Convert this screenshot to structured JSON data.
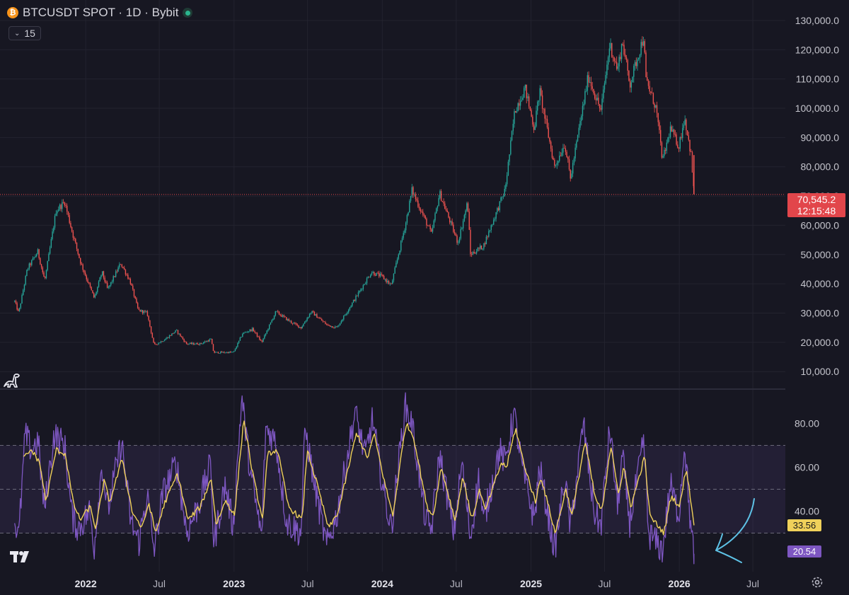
{
  "header": {
    "title": "BTCUSDT SPOT · 1D · Bybit",
    "interval_value": "15"
  },
  "price_tag": {
    "price": "70,545.2",
    "countdown": "12:15:48",
    "color": "#e2464b"
  },
  "rsi_tags": {
    "ma_value": "33.56",
    "rsi_value": "20.54",
    "ma_color": "#f0d15a",
    "rsi_color": "#7e57c2"
  },
  "icons": [
    "bitcoin-icon",
    "status-dot-icon",
    "chevron-down-icon",
    "dinosaur-icon",
    "tradingview-logo-icon",
    "gear-icon",
    "hand-drawn-arrow-icon"
  ],
  "chart_data": [
    {
      "type": "candlestick",
      "pane": "price",
      "y_ticks": [
        "130,000.0",
        "120,000.0",
        "110,000.0",
        "100,000.0",
        "90,000.0",
        "80,000.0",
        "70,000.0",
        "60,000.0",
        "50,000.0",
        "40,000.0",
        "30,000.0",
        "20,000.0",
        "10,000.0"
      ],
      "y_tick_values": [
        130000,
        120000,
        110000,
        100000,
        90000,
        80000,
        70000,
        60000,
        50000,
        40000,
        30000,
        20000,
        10000
      ],
      "ylim": [
        4000,
        137000
      ],
      "x_ticks": [
        "2022",
        "Jul",
        "2023",
        "Jul",
        "2024",
        "Jul",
        "2025",
        "Jul",
        "2026",
        "Jul"
      ],
      "x_tick_dates": [
        "2022-01-01",
        "2022-07-01",
        "2023-01-01",
        "2023-07-01",
        "2024-01-01",
        "2024-07-01",
        "2025-01-01",
        "2025-07-01",
        "2026-01-01",
        "2026-07-01"
      ],
      "xlim": [
        "2021-06-04",
        "2026-09-19"
      ],
      "current_price": 70545.2,
      "up_color": "#26a69a",
      "down_color": "#ef5350",
      "close_path": [
        [
          "2021-07-10",
          34000
        ],
        [
          "2021-07-20",
          30000
        ],
        [
          "2021-08-10",
          45000
        ],
        [
          "2021-09-05",
          51000
        ],
        [
          "2021-09-22",
          41000
        ],
        [
          "2021-10-20",
          65000
        ],
        [
          "2021-11-10",
          68000
        ],
        [
          "2021-11-30",
          57000
        ],
        [
          "2021-12-20",
          47000
        ],
        [
          "2022-01-22",
          35000
        ],
        [
          "2022-02-10",
          44000
        ],
        [
          "2022-02-24",
          38000
        ],
        [
          "2022-03-28",
          47000
        ],
        [
          "2022-04-20",
          41000
        ],
        [
          "2022-05-10",
          31000
        ],
        [
          "2022-06-01",
          30000
        ],
        [
          "2022-06-18",
          19000
        ],
        [
          "2022-07-15",
          21000
        ],
        [
          "2022-08-12",
          24000
        ],
        [
          "2022-09-06",
          19500
        ],
        [
          "2022-10-10",
          19500
        ],
        [
          "2022-11-05",
          21000
        ],
        [
          "2022-11-12",
          16500
        ],
        [
          "2022-12-31",
          16600
        ],
        [
          "2023-01-22",
          23000
        ],
        [
          "2023-02-16",
          24500
        ],
        [
          "2023-03-10",
          20000
        ],
        [
          "2023-04-14",
          30500
        ],
        [
          "2023-05-20",
          27000
        ],
        [
          "2023-06-15",
          25000
        ],
        [
          "2023-07-10",
          30500
        ],
        [
          "2023-08-17",
          26000
        ],
        [
          "2023-09-11",
          25000
        ],
        [
          "2023-10-24",
          34500
        ],
        [
          "2023-12-05",
          44000
        ],
        [
          "2023-12-31",
          42500
        ],
        [
          "2024-01-23",
          39500
        ],
        [
          "2024-02-28",
          61000
        ],
        [
          "2024-03-14",
          72000
        ],
        [
          "2024-05-01",
          57000
        ],
        [
          "2024-05-21",
          71000
        ],
        [
          "2024-07-05",
          54000
        ],
        [
          "2024-07-29",
          68000
        ],
        [
          "2024-08-05",
          50000
        ],
        [
          "2024-09-06",
          53000
        ],
        [
          "2024-10-29",
          72000
        ],
        [
          "2024-11-22",
          99000
        ],
        [
          "2024-12-17",
          107000
        ],
        [
          "2025-01-09",
          93000
        ],
        [
          "2025-01-22",
          106000
        ],
        [
          "2025-02-28",
          80000
        ],
        [
          "2025-03-25",
          88000
        ],
        [
          "2025-04-08",
          76000
        ],
        [
          "2025-05-22",
          111000
        ],
        [
          "2025-06-22",
          99000
        ],
        [
          "2025-07-14",
          122000
        ],
        [
          "2025-08-02",
          113000
        ],
        [
          "2025-08-14",
          123000
        ],
        [
          "2025-09-01",
          108000
        ],
        [
          "2025-10-06",
          125000
        ],
        [
          "2025-10-10",
          110000
        ],
        [
          "2025-11-05",
          100000
        ],
        [
          "2025-11-21",
          82000
        ],
        [
          "2025-12-10",
          93000
        ],
        [
          "2025-12-31",
          87000
        ],
        [
          "2026-01-14",
          97000
        ],
        [
          "2026-01-30",
          84000
        ],
        [
          "2026-02-06",
          70545
        ]
      ]
    },
    {
      "type": "line",
      "pane": "rsi",
      "y_ticks": [
        "80.00",
        "60.00",
        "40.00"
      ],
      "y_tick_values": [
        80,
        60,
        40
      ],
      "ylim": [
        15,
        95
      ],
      "band": [
        30,
        70
      ],
      "midline": 50,
      "band_color": "#7e57c2",
      "latest": {
        "rsi": 20.54,
        "rsi_ma": 33.56
      },
      "series": [
        {
          "name": "",
          "color": "#7e57c2",
          "points": [
            [
              "2021-07-10",
              36
            ],
            [
              "2021-07-20",
              28
            ],
            [
              "2021-08-05",
              75
            ],
            [
              "2021-08-20",
              68
            ],
            [
              "2021-09-06",
              72
            ],
            [
              "2021-09-21",
              40
            ],
            [
              "2021-10-15",
              75
            ],
            [
              "2021-11-10",
              70
            ],
            [
              "2021-11-28",
              38
            ],
            [
              "2021-12-14",
              32
            ],
            [
              "2022-01-10",
              40
            ],
            [
              "2022-01-22",
              24
            ],
            [
              "2022-02-10",
              62
            ],
            [
              "2022-02-24",
              40
            ],
            [
              "2022-03-30",
              72
            ],
            [
              "2022-04-22",
              35
            ],
            [
              "2022-05-12",
              26
            ],
            [
              "2022-06-01",
              48
            ],
            [
              "2022-06-18",
              22
            ],
            [
              "2022-07-10",
              48
            ],
            [
              "2022-08-12",
              62
            ],
            [
              "2022-09-07",
              30
            ],
            [
              "2022-10-10",
              45
            ],
            [
              "2022-11-05",
              62
            ],
            [
              "2022-11-12",
              25
            ],
            [
              "2022-12-10",
              52
            ],
            [
              "2022-12-30",
              33
            ],
            [
              "2023-01-20",
              92
            ],
            [
              "2023-02-10",
              58
            ],
            [
              "2023-03-10",
              28
            ],
            [
              "2023-03-20",
              78
            ],
            [
              "2023-04-14",
              72
            ],
            [
              "2023-05-10",
              35
            ],
            [
              "2023-06-15",
              30
            ],
            [
              "2023-06-25",
              78
            ],
            [
              "2023-07-20",
              50
            ],
            [
              "2023-08-17",
              24
            ],
            [
              "2023-09-11",
              38
            ],
            [
              "2023-10-26",
              85
            ],
            [
              "2023-11-20",
              65
            ],
            [
              "2023-12-08",
              82
            ],
            [
              "2024-01-05",
              48
            ],
            [
              "2024-01-23",
              32
            ],
            [
              "2024-02-26",
              88
            ],
            [
              "2024-03-14",
              80
            ],
            [
              "2024-04-17",
              35
            ],
            [
              "2024-05-01",
              32
            ],
            [
              "2024-05-21",
              66
            ],
            [
              "2024-06-25",
              30
            ],
            [
              "2024-07-15",
              62
            ],
            [
              "2024-08-05",
              28
            ],
            [
              "2024-08-25",
              55
            ],
            [
              "2024-09-06",
              35
            ],
            [
              "2024-10-15",
              68
            ],
            [
              "2024-10-29",
              62
            ],
            [
              "2024-11-20",
              85
            ],
            [
              "2024-12-10",
              60
            ],
            [
              "2025-01-09",
              36
            ],
            [
              "2025-01-22",
              60
            ],
            [
              "2025-02-28",
              22
            ],
            [
              "2025-03-25",
              55
            ],
            [
              "2025-04-08",
              32
            ],
            [
              "2025-05-10",
              80
            ],
            [
              "2025-06-05",
              40
            ],
            [
              "2025-06-22",
              33
            ],
            [
              "2025-07-14",
              78
            ],
            [
              "2025-08-02",
              42
            ],
            [
              "2025-08-14",
              65
            ],
            [
              "2025-09-01",
              35
            ],
            [
              "2025-10-06",
              72
            ],
            [
              "2025-10-17",
              30
            ],
            [
              "2025-11-21",
              22
            ],
            [
              "2025-12-10",
              52
            ],
            [
              "2025-12-31",
              38
            ],
            [
              "2026-01-14",
              72
            ],
            [
              "2026-01-30",
              30
            ],
            [
              "2026-02-06",
              20.54
            ]
          ]
        },
        {
          "name": "",
          "color": "#f0d15a",
          "points": [
            [
              "2021-08-01",
              64
            ],
            [
              "2021-08-20",
              68
            ],
            [
              "2021-09-10",
              62
            ],
            [
              "2021-09-25",
              44
            ],
            [
              "2021-10-20",
              68
            ],
            [
              "2021-11-12",
              66
            ],
            [
              "2021-12-01",
              44
            ],
            [
              "2021-12-18",
              36
            ],
            [
              "2022-01-12",
              42
            ],
            [
              "2022-01-26",
              32
            ],
            [
              "2022-02-15",
              54
            ],
            [
              "2022-03-01",
              44
            ],
            [
              "2022-04-01",
              64
            ],
            [
              "2022-04-25",
              40
            ],
            [
              "2022-05-20",
              32
            ],
            [
              "2022-06-05",
              44
            ],
            [
              "2022-06-22",
              30
            ],
            [
              "2022-07-15",
              44
            ],
            [
              "2022-08-15",
              57
            ],
            [
              "2022-09-10",
              36
            ],
            [
              "2022-10-10",
              42
            ],
            [
              "2022-11-06",
              55
            ],
            [
              "2022-11-18",
              34
            ],
            [
              "2022-12-12",
              45
            ],
            [
              "2023-01-02",
              38
            ],
            [
              "2023-01-25",
              82
            ],
            [
              "2023-02-15",
              58
            ],
            [
              "2023-03-12",
              36
            ],
            [
              "2023-03-25",
              66
            ],
            [
              "2023-04-18",
              68
            ],
            [
              "2023-05-15",
              42
            ],
            [
              "2023-06-18",
              36
            ],
            [
              "2023-06-30",
              68
            ],
            [
              "2023-07-25",
              52
            ],
            [
              "2023-08-22",
              32
            ],
            [
              "2023-09-15",
              40
            ],
            [
              "2023-10-30",
              76
            ],
            [
              "2023-11-25",
              64
            ],
            [
              "2023-12-12",
              75
            ],
            [
              "2024-01-08",
              52
            ],
            [
              "2024-01-27",
              38
            ],
            [
              "2024-02-28",
              80
            ],
            [
              "2024-03-18",
              74
            ],
            [
              "2024-04-20",
              42
            ],
            [
              "2024-05-05",
              38
            ],
            [
              "2024-05-25",
              60
            ],
            [
              "2024-06-28",
              36
            ],
            [
              "2024-07-18",
              56
            ],
            [
              "2024-08-08",
              36
            ],
            [
              "2024-08-28",
              50
            ],
            [
              "2024-09-10",
              40
            ],
            [
              "2024-10-20",
              62
            ],
            [
              "2024-11-02",
              60
            ],
            [
              "2024-11-24",
              78
            ],
            [
              "2024-12-14",
              62
            ],
            [
              "2025-01-12",
              44
            ],
            [
              "2025-01-25",
              56
            ],
            [
              "2025-03-02",
              30
            ],
            [
              "2025-03-28",
              50
            ],
            [
              "2025-04-12",
              38
            ],
            [
              "2025-05-14",
              72
            ],
            [
              "2025-06-08",
              46
            ],
            [
              "2025-06-25",
              40
            ],
            [
              "2025-07-17",
              70
            ],
            [
              "2025-08-05",
              48
            ],
            [
              "2025-08-17",
              60
            ],
            [
              "2025-09-04",
              42
            ],
            [
              "2025-10-08",
              65
            ],
            [
              "2025-10-20",
              38
            ],
            [
              "2025-11-24",
              30
            ],
            [
              "2025-12-12",
              47
            ],
            [
              "2026-01-02",
              42
            ],
            [
              "2026-01-18",
              60
            ],
            [
              "2026-02-02",
              40
            ],
            [
              "2026-02-06",
              33.56
            ]
          ]
        }
      ]
    }
  ]
}
